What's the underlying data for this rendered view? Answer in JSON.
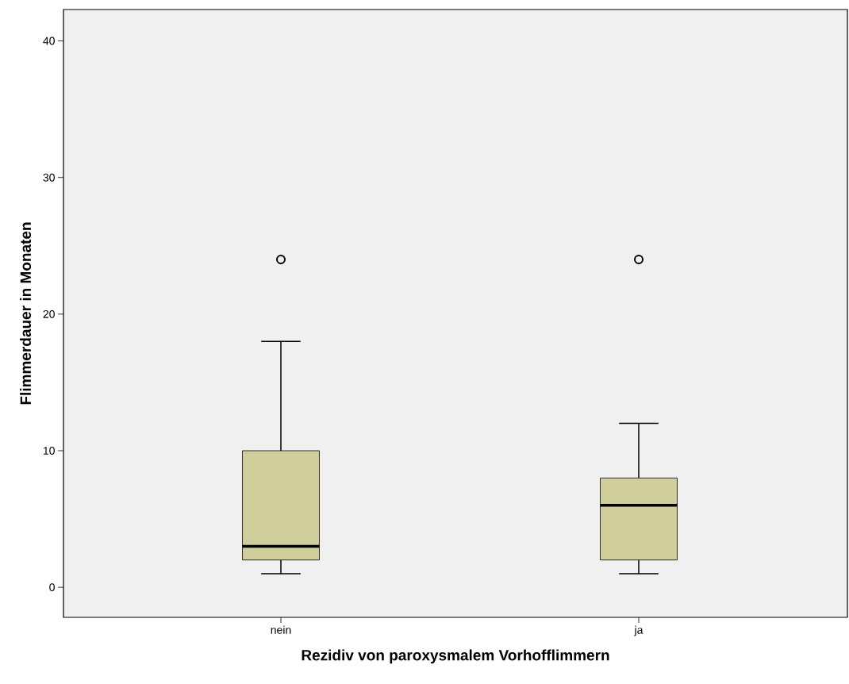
{
  "chart_data": {
    "type": "box",
    "xlabel": "Rezidiv von paroxysmalem Vorhofflimmern",
    "ylabel": "Flimmerdauer in Monaten",
    "categories": [
      "nein",
      "ja"
    ],
    "boxes": [
      {
        "low": 1,
        "q1": 2,
        "median": 3,
        "q3": 10,
        "high": 18,
        "outliers": [
          24
        ]
      },
      {
        "low": 1,
        "q1": 2,
        "median": 6,
        "q3": 8,
        "high": 12,
        "outliers": [
          24
        ]
      }
    ],
    "color": "#d0cf9c",
    "ylim": [
      -2.2,
      42.3
    ],
    "yticks": [
      0,
      10,
      20,
      30,
      40
    ],
    "grid": false,
    "marker": "circle"
  }
}
